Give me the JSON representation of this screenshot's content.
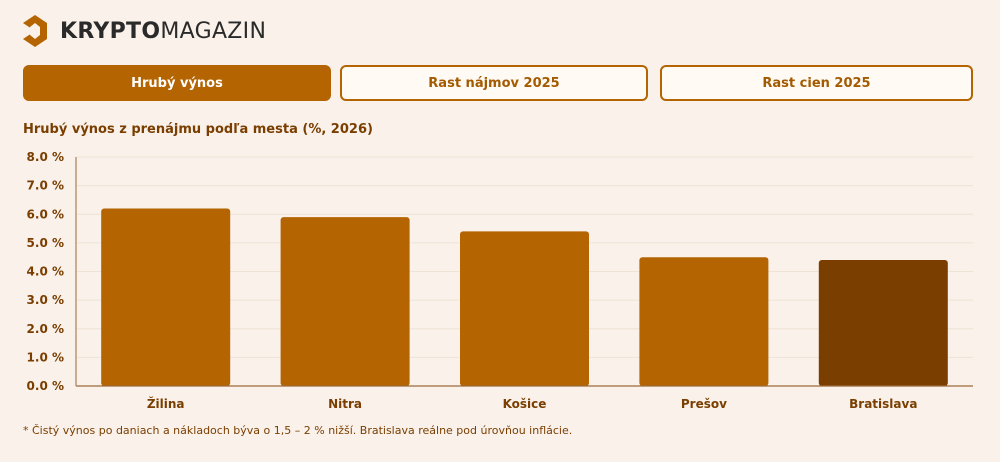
{
  "brand": {
    "bold": "KRYPTO",
    "light": "MAGAZIN"
  },
  "tabs": [
    {
      "label": "Hrubý výnos",
      "active": true
    },
    {
      "label": "Rast nájmov 2025",
      "active": false
    },
    {
      "label": "Rast cien 2025",
      "active": false
    }
  ],
  "colors": {
    "bar": "#b46400",
    "highlight": "#7a3e00",
    "grid": "#efe3d6",
    "text": "#7a3e00",
    "background": "#f9f1ea"
  },
  "chart_data": {
    "type": "bar",
    "title": "Hrubý výnos z prenájmu podľa mesta (%, 2026)",
    "categories": [
      "Žilina",
      "Nitra",
      "Košice",
      "Prešov",
      "Bratislava"
    ],
    "values": [
      6.2,
      5.9,
      5.4,
      4.5,
      4.4
    ],
    "highlight": "Bratislava",
    "ylim": [
      0,
      8
    ],
    "yticks": [
      "0.0 %",
      "1.0 %",
      "2.0 %",
      "3.0 %",
      "4.0 %",
      "5.0 %",
      "6.0 %",
      "7.0 %",
      "8.0 %"
    ],
    "grid": true
  },
  "footnote": "* Čistý výnos po daniach a nákladoch býva o 1,5 – 2 % nižší. Bratislava reálne pod úrovňou inflácie."
}
